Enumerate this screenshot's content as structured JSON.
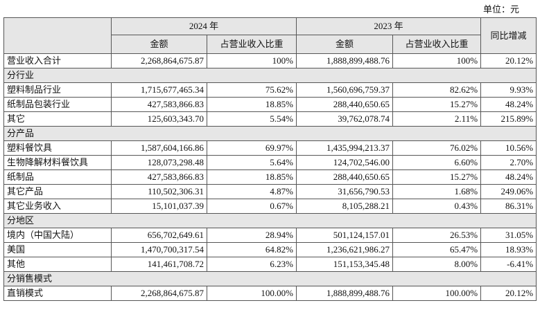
{
  "unit": "单位：元",
  "table": {
    "header": {
      "year_2024": "2024 年",
      "year_2023": "2023 年",
      "change": "同比增减",
      "columns": [
        "金额",
        "占营业收入比重",
        "金额",
        "占营业收入比重"
      ]
    },
    "rows": [
      {
        "cells": [
          "营业收入合计",
          "2,268,864,675.87",
          "100%",
          "1,888,899,488.76",
          "100%",
          "20.12%"
        ]
      },
      {
        "section": "分行业"
      },
      {
        "cells": [
          "塑料制品行业",
          "1,715,677,465.34",
          "75.62%",
          "1,560,696,759.37",
          "82.62%",
          "9.93%"
        ]
      },
      {
        "cells": [
          "纸制品包装行业",
          "427,583,866.83",
          "18.85%",
          "288,440,650.65",
          "15.27%",
          "48.24%"
        ]
      },
      {
        "cells": [
          "其它",
          "125,603,343.70",
          "5.54%",
          "39,762,078.74",
          "2.11%",
          "215.89%"
        ]
      },
      {
        "section": "分产品"
      },
      {
        "cells": [
          "塑料餐饮具",
          "1,587,604,166.86",
          "69.97%",
          "1,435,994,213.37",
          "76.02%",
          "10.56%"
        ]
      },
      {
        "cells": [
          "生物降解材料餐饮具",
          "128,073,298.48",
          "5.64%",
          "124,702,546.00",
          "6.60%",
          "2.70%"
        ]
      },
      {
        "cells": [
          "纸制品",
          "427,583,866.83",
          "18.85%",
          "288,440,650.65",
          "15.27%",
          "48.24%"
        ]
      },
      {
        "cells": [
          "其它产品",
          "110,502,306.31",
          "4.87%",
          "31,656,790.53",
          "1.68%",
          "249.06%"
        ]
      },
      {
        "cells": [
          "其它业务收入",
          "15,101,037.39",
          "0.67%",
          "8,105,288.21",
          "0.43%",
          "86.31%"
        ]
      },
      {
        "section": "分地区"
      },
      {
        "cells": [
          "境内（中国大陆）",
          "656,702,649.61",
          "28.94%",
          "501,124,157.01",
          "26.53%",
          "31.05%"
        ]
      },
      {
        "cells": [
          "美国",
          "1,470,700,317.54",
          "64.82%",
          "1,236,621,986.27",
          "65.47%",
          "18.93%"
        ]
      },
      {
        "cells": [
          "其他",
          "141,461,708.72",
          "6.23%",
          "151,153,345.48",
          "8.00%",
          "-6.41%"
        ]
      },
      {
        "section": "分销售模式"
      },
      {
        "cells": [
          "直销模式",
          "2,268,864,675.87",
          "100.00%",
          "1,888,899,488.76",
          "100.00%",
          "20.12%"
        ]
      }
    ]
  }
}
